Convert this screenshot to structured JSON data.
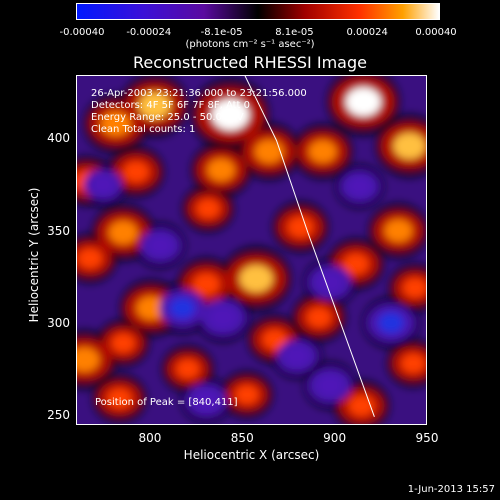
{
  "colorbar": {
    "ticks": [
      "-0.00040",
      "-0.00024",
      "-8.1e-05",
      "8.1e-05",
      "0.00024",
      "0.00040"
    ],
    "units": "(photons cm⁻² s⁻¹ asec⁻²)"
  },
  "annotations": {
    "time_range": "26-Apr-2003 23:21:36.000 to 23:21:56.000",
    "detectors": "Detectors: 4F 5F 6F 7F 8F, Att 0",
    "energy_range": "Energy Range: 25.0 - 50.0 keV",
    "clean": "Clean    Total counts: 1",
    "peak": "Position of Peak = [840,411]"
  },
  "plot_date": "1-Jun-2013 15:57",
  "colors": {
    "background": "#000000",
    "axis": "#ffffff",
    "limb": "#ffffff"
  },
  "chart_data": {
    "type": "heatmap",
    "title": "Reconstructed RHESSI Image",
    "xlabel": "Heliocentric X (arcsec)",
    "ylabel": "Heliocentric Y (arcsec)",
    "xlim": [
      760,
      950
    ],
    "ylim": [
      245,
      435
    ],
    "xticks": [
      800,
      850,
      900,
      950
    ],
    "yticks": [
      250,
      300,
      350,
      400
    ],
    "colorbar_range": [
      -0.0004,
      0.0004
    ],
    "peak": [
      840,
      411
    ],
    "limb_curve": [
      [
        850,
        437
      ],
      [
        868,
        400
      ],
      [
        885,
        350
      ],
      [
        903,
        300
      ],
      [
        921,
        250
      ]
    ],
    "blobs": [
      {
        "x": 843,
        "y": 414,
        "v": 0.0004
      },
      {
        "x": 802,
        "y": 419,
        "v": 0.0003
      },
      {
        "x": 781,
        "y": 409,
        "v": 0.00026
      },
      {
        "x": 915,
        "y": 421,
        "v": 0.00035
      },
      {
        "x": 940,
        "y": 397,
        "v": 0.0003
      },
      {
        "x": 893,
        "y": 394,
        "v": 0.00022
      },
      {
        "x": 864,
        "y": 394,
        "v": 0.00024
      },
      {
        "x": 838,
        "y": 384,
        "v": 0.00022
      },
      {
        "x": 792,
        "y": 383,
        "v": 0.00018
      },
      {
        "x": 765,
        "y": 378,
        "v": 0.00016
      },
      {
        "x": 831,
        "y": 363,
        "v": 0.00014
      },
      {
        "x": 785,
        "y": 350,
        "v": 0.00024
      },
      {
        "x": 881,
        "y": 353,
        "v": 0.00018
      },
      {
        "x": 934,
        "y": 351,
        "v": 0.00022
      },
      {
        "x": 767,
        "y": 336,
        "v": 0.00016
      },
      {
        "x": 857,
        "y": 325,
        "v": 0.00032
      },
      {
        "x": 830,
        "y": 322,
        "v": 0.0002
      },
      {
        "x": 911,
        "y": 333,
        "v": 0.00018
      },
      {
        "x": 943,
        "y": 320,
        "v": 0.00015
      },
      {
        "x": 800,
        "y": 309,
        "v": 0.00024
      },
      {
        "x": 891,
        "y": 304,
        "v": 0.00016
      },
      {
        "x": 785,
        "y": 290,
        "v": 0.00014
      },
      {
        "x": 867,
        "y": 292,
        "v": 0.00016
      },
      {
        "x": 764,
        "y": 281,
        "v": 0.00026
      },
      {
        "x": 820,
        "y": 276,
        "v": 0.00014
      },
      {
        "x": 942,
        "y": 279,
        "v": 0.00015
      },
      {
        "x": 783,
        "y": 260,
        "v": 0.00016
      },
      {
        "x": 852,
        "y": 262,
        "v": 0.00014
      },
      {
        "x": 914,
        "y": 256,
        "v": 0.00018
      },
      {
        "x": 805,
        "y": 343,
        "v": -0.00012
      },
      {
        "x": 817,
        "y": 309,
        "v": -0.00018
      },
      {
        "x": 839,
        "y": 304,
        "v": -0.00016
      },
      {
        "x": 879,
        "y": 283,
        "v": -0.00012
      },
      {
        "x": 897,
        "y": 323,
        "v": -0.00014
      },
      {
        "x": 930,
        "y": 301,
        "v": -0.00018
      },
      {
        "x": 897,
        "y": 267,
        "v": -0.00014
      },
      {
        "x": 830,
        "y": 259,
        "v": -0.00012
      },
      {
        "x": 913,
        "y": 375,
        "v": -0.0001
      },
      {
        "x": 774,
        "y": 376,
        "v": -0.0001
      }
    ]
  }
}
